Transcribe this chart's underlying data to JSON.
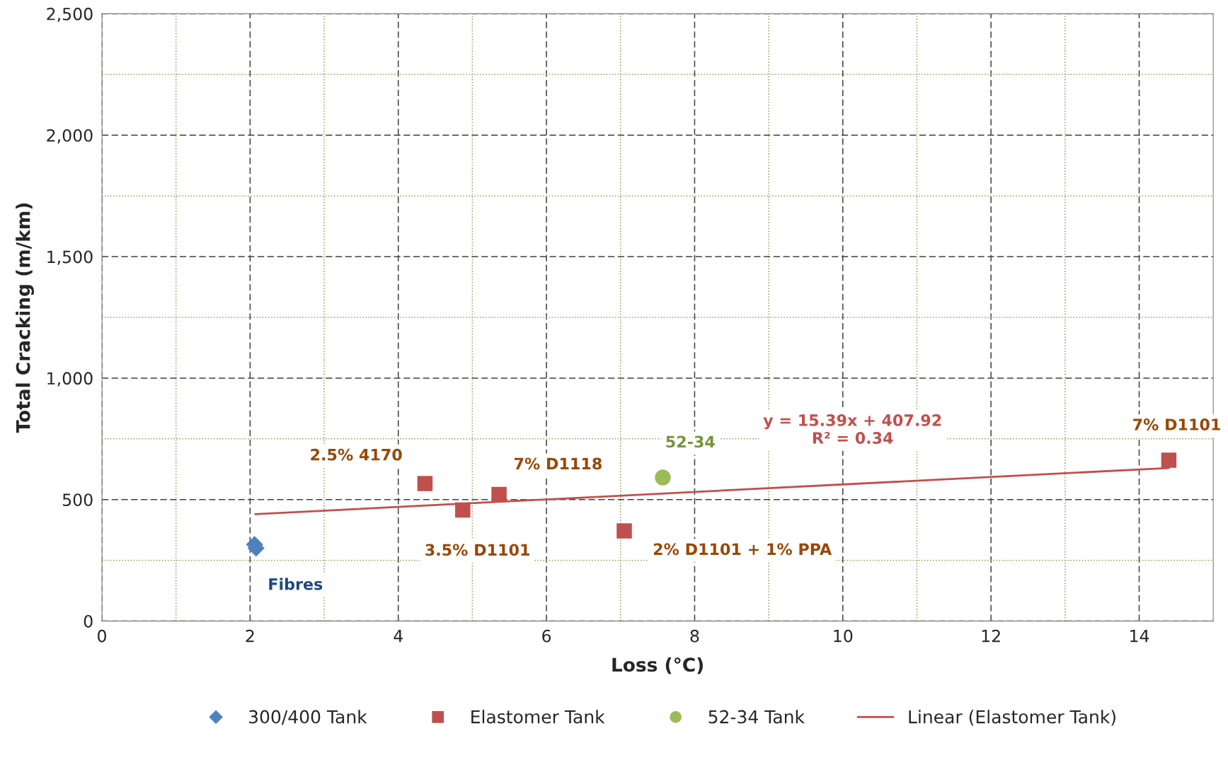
{
  "chart_data": {
    "type": "scatter",
    "xlabel": "Loss (°C)",
    "ylabel": "Total Cracking (m/km)",
    "xlim": [
      0,
      15
    ],
    "xticks": [
      0,
      {
        "value": 1,
        "label": null
      },
      2,
      {
        "value": 3,
        "label": null
      },
      4,
      {
        "value": 5,
        "label": null
      },
      6,
      {
        "value": 7,
        "label": null
      },
      8,
      {
        "value": 9,
        "label": null
      },
      10,
      {
        "value": 11,
        "label": null
      },
      12,
      {
        "value": 13,
        "label": null
      },
      14
    ],
    "ylim": [
      0,
      2500
    ],
    "yticks": [
      0,
      {
        "value": 250,
        "label": null
      },
      {
        "value": 500,
        "label": "500"
      },
      {
        "value": 750,
        "label": null
      },
      {
        "value": 1000,
        "label": "1,000"
      },
      {
        "value": 1250,
        "label": null
      },
      {
        "value": 1500,
        "label": "1,500"
      },
      {
        "value": 1750,
        "label": null
      },
      {
        "value": 2000,
        "label": "2,000"
      },
      {
        "value": 2250,
        "label": null
      },
      {
        "value": 2500,
        "label": "2,500"
      }
    ],
    "grid": true,
    "legend": "bottom",
    "series": [
      {
        "name": "300/400 Tank",
        "color": "#4f81bd",
        "marker": "diamond",
        "x": [
          2.06,
          2.08
        ],
        "values": [
          315,
          300
        ]
      },
      {
        "name": "Elastomer Tank",
        "color": "#c0504d",
        "marker": "square",
        "x": [
          4.36,
          4.87,
          5.36,
          7.05,
          14.4
        ],
        "values": [
          566,
          457,
          521,
          371,
          662
        ]
      },
      {
        "name": "52-34 Tank",
        "color": "#9bbb59",
        "marker": "circle",
        "x": [
          7.57
        ],
        "values": [
          591
        ]
      },
      {
        "name": "Linear (Elastomer Tank)",
        "type": "line",
        "color": "#c0504d",
        "marker": "none",
        "x": [
          2.07,
          14.4
        ],
        "values": [
          440,
          630
        ]
      }
    ],
    "annotations": [
      {
        "text": "Fibres",
        "x": 2.08,
        "y": 300
      },
      {
        "text": "2.5% 4170",
        "x": 4.36,
        "y": 566
      },
      {
        "text": "3.5% D1101",
        "x": 4.87,
        "y": 457
      },
      {
        "text": "7% D1118",
        "x": 5.36,
        "y": 521
      },
      {
        "text": "2% D1101 + 1% PPA",
        "x": 7.05,
        "y": 371
      },
      {
        "text": "7% D1101",
        "x": 14.4,
        "y": 662
      },
      {
        "text": "52-34",
        "x": 7.57,
        "y": 591
      },
      {
        "text": "y = 15.39x + 407.92\nR² = 0.34",
        "x": 10,
        "y": 562
      }
    ]
  }
}
